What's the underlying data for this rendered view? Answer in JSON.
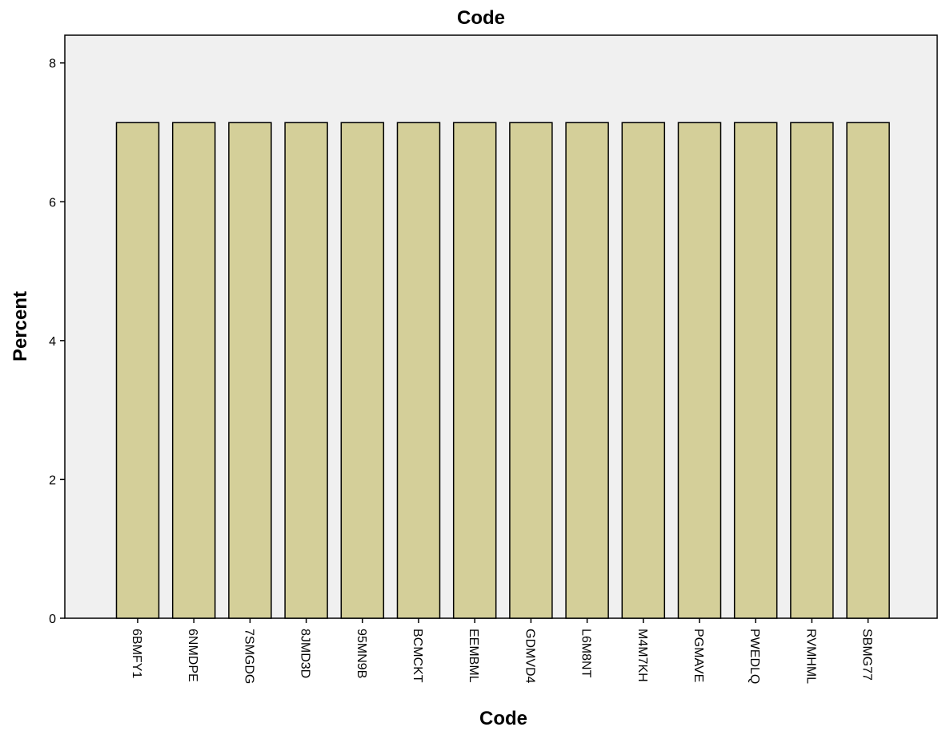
{
  "chart_data": {
    "type": "bar",
    "title": "Code",
    "xlabel": "Code",
    "ylabel": "Percent",
    "categories": [
      "6BMFY1",
      "6NMDPE",
      "7SMGDG",
      "8JMD3D",
      "95MN9B",
      "BCMCKT",
      "EEMBML",
      "GDMVD4",
      "L6M8NT",
      "M4M7KH",
      "PGMAVE",
      "PWEDLQ",
      "RVMHML",
      "SBMG77"
    ],
    "values": [
      7.14,
      7.14,
      7.14,
      7.14,
      7.14,
      7.14,
      7.14,
      7.14,
      7.14,
      7.14,
      7.14,
      7.14,
      7.14,
      7.14
    ],
    "ylim": [
      0,
      8.4
    ],
    "yticks": [
      0,
      2,
      4,
      6,
      8
    ],
    "grid": false,
    "colors": {
      "bar": "#d4cf99",
      "bar_stroke": "#000000",
      "plot_bg": "#f0f0f0"
    }
  }
}
